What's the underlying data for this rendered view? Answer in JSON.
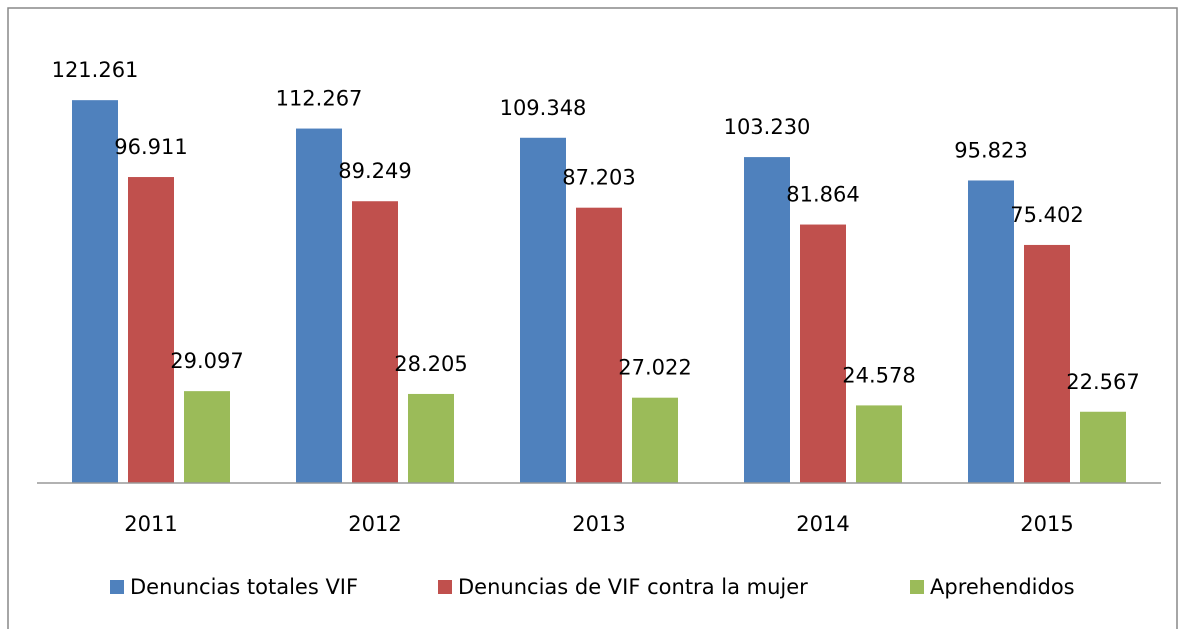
{
  "chart_data": {
    "type": "bar",
    "categories": [
      "2011",
      "2012",
      "2013",
      "2014",
      "2015"
    ],
    "series": [
      {
        "name": "Denuncias totales VIF",
        "color": "#4f81bd",
        "values": [
          121261,
          112267,
          109348,
          103230,
          95823
        ],
        "value_labels": [
          "121.261",
          "112.267",
          "109.348",
          "103.230",
          "95.823"
        ]
      },
      {
        "name": "Denuncias de VIF contra la mujer",
        "color": "#c0504d",
        "values": [
          96911,
          89249,
          87203,
          81864,
          75402
        ],
        "value_labels": [
          "96.911",
          "89.249",
          "87.203",
          "81.864",
          "75.402"
        ]
      },
      {
        "name": "Aprehendidos",
        "color": "#9bbb59",
        "values": [
          29097,
          28205,
          27022,
          24578,
          22567
        ],
        "value_labels": [
          "29.097",
          "28.205",
          "27.022",
          "24.578",
          "22.567"
        ]
      }
    ],
    "ylim": [
      0,
      140000
    ],
    "legend": "bottom"
  }
}
